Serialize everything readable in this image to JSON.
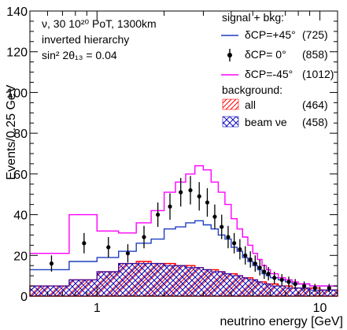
{
  "chart_data": {
    "type": "line",
    "title": "",
    "xlabel": "neutrino energy [GeV]",
    "ylabel": "Events/0.25 GeV",
    "xscale": "log",
    "xlim": [
      0.5,
      12
    ],
    "ylim": [
      0,
      140
    ],
    "x_ticks": [
      1,
      10
    ],
    "x_tick_labels": [
      "1",
      "10"
    ],
    "y_ticks": [
      0,
      20,
      40,
      60,
      80,
      100,
      120,
      140
    ],
    "y_tick_labels": [
      "0",
      "20",
      "40",
      "60",
      "80",
      "100",
      "120",
      "140"
    ],
    "grid": false,
    "legend_position": "top-right",
    "annotations": [
      "ν,  30 10²⁰ PoT, 1300km",
      "inverted hierarchy",
      "sin² 2θ₁₃ = 0.04"
    ],
    "legend": {
      "signal_header": "signal + bkg:",
      "background_header": "background:",
      "entries": [
        {
          "label": "δCP=+45°",
          "count": "(725)",
          "color": "#1f3fbf",
          "style": "line"
        },
        {
          "label": "δCP= 0°",
          "count": "(858)",
          "color": "#000000",
          "style": "marker"
        },
        {
          "label": "δCP=-45°",
          "count": "(1012)",
          "color": "#ff00ff",
          "style": "line"
        },
        {
          "label": "all",
          "count": "(464)",
          "color": "#ff0000",
          "style": "hatch-red"
        },
        {
          "label": "beam νe",
          "count": "(458)",
          "color": "#1010c0",
          "style": "hatch-blue"
        }
      ]
    },
    "bin_edges": [
      0.5,
      0.75,
      1.0,
      1.25,
      1.5,
      1.75,
      2.0,
      2.25,
      2.5,
      2.75,
      3.0,
      3.25,
      3.5,
      3.75,
      4.0,
      4.25,
      4.5,
      4.75,
      5.0,
      5.25,
      5.5,
      5.75,
      6.0,
      6.5,
      7.0,
      7.5,
      8.0,
      9.0,
      10.0,
      12.0
    ],
    "series": [
      {
        "name": "δCP=+45°",
        "color": "#1f3fbf",
        "values": [
          13,
          17,
          19,
          22,
          26,
          28,
          33,
          34,
          36,
          37,
          35,
          33,
          30,
          28,
          24,
          22,
          19,
          17,
          15,
          13,
          11,
          10,
          9,
          8,
          7,
          6,
          6,
          5,
          5
        ]
      },
      {
        "name": "δCP=-45°",
        "color": "#ff00ff",
        "values": [
          21,
          40,
          32,
          31,
          36,
          42,
          51,
          56,
          60,
          64,
          62,
          56,
          51,
          45,
          38,
          33,
          29,
          25,
          21,
          18,
          15,
          13,
          11,
          9,
          8,
          7,
          6,
          5,
          5
        ]
      },
      {
        "name": "background all",
        "color": "#ff0000",
        "values": [
          5,
          8,
          12,
          16,
          17,
          16,
          16,
          15,
          15,
          14,
          13,
          13,
          12,
          11,
          11,
          10,
          9,
          9,
          8,
          7,
          7,
          6,
          6,
          5,
          5,
          4,
          4,
          4,
          3
        ]
      },
      {
        "name": "background beam νe",
        "color": "#1010c0",
        "values": [
          5,
          8,
          12,
          16,
          16,
          16,
          15,
          15,
          14,
          14,
          13,
          12,
          12,
          11,
          10,
          10,
          9,
          8,
          8,
          7,
          6,
          6,
          5,
          5,
          4,
          4,
          4,
          3,
          3
        ]
      }
    ],
    "points": {
      "name": "δCP= 0°",
      "color": "#000000",
      "x": [
        0.625,
        0.875,
        1.125,
        1.375,
        1.625,
        1.875,
        2.125,
        2.375,
        2.625,
        2.875,
        3.125,
        3.375,
        3.625,
        3.875,
        4.125,
        4.375,
        4.625,
        4.875,
        5.125,
        5.375,
        5.625,
        5.875,
        6.25,
        6.75,
        7.25,
        7.75,
        8.5,
        9.5,
        11.0
      ],
      "y": [
        16,
        26,
        24,
        21,
        29,
        40,
        44,
        51,
        52,
        49,
        46,
        39,
        34,
        29,
        26,
        23,
        20,
        18,
        16,
        14,
        12,
        11,
        9,
        8,
        7,
        6,
        5,
        4,
        4
      ],
      "err": [
        4,
        5,
        5,
        4.5,
        5.5,
        6,
        6.5,
        7,
        7,
        7,
        7,
        6,
        6,
        5.5,
        5,
        5,
        4.5,
        4,
        4,
        3.8,
        3.5,
        3.3,
        3,
        2.8,
        2.6,
        2.4,
        2.2,
        2,
        2
      ]
    }
  }
}
